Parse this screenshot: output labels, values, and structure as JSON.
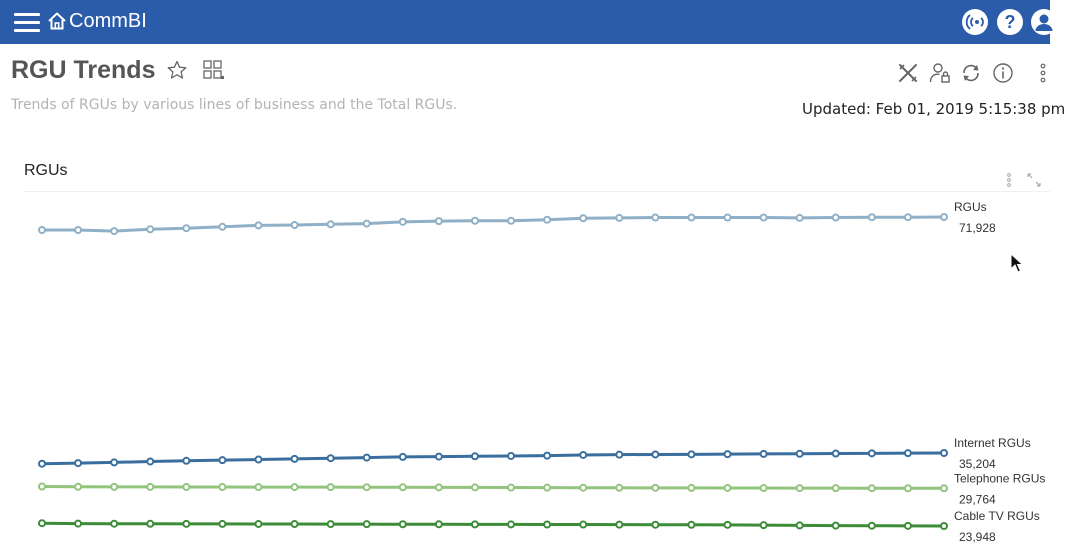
{
  "header": {
    "app_name": "CommBI",
    "icons": [
      "menu-icon",
      "home-icon",
      "broadcast-icon",
      "help-icon",
      "user-icon"
    ]
  },
  "page": {
    "title": "RGU Trends",
    "description": "Trends of RGUs by various lines of business and the Total RGUs.",
    "updated": "Updated: Feb 01, 2019 5:15:38 pm"
  },
  "toolbar_icons": [
    "tools-icon",
    "user-lock-icon",
    "refresh-icon",
    "info-icon",
    "more-icon"
  ],
  "panel": {
    "title": "RGUs",
    "icons": [
      "panel-more-icon",
      "expand-icon"
    ]
  },
  "colors": {
    "header_bg": "#2a5caa",
    "rgus": "#8fb0c6",
    "internet": "#3a6e9e",
    "telephone": "#93c47d",
    "cable": "#3c8c37"
  },
  "chart_data": {
    "type": "line",
    "x": [
      1,
      2,
      3,
      4,
      5,
      6,
      7,
      8,
      9,
      10,
      11,
      12,
      13,
      14,
      15,
      16,
      17,
      18,
      19,
      20,
      21,
      22,
      23,
      24,
      25,
      26
    ],
    "grid": false,
    "legend": "inline-right",
    "series": [
      {
        "name": "RGUs",
        "last_label": "71,928",
        "color": "#8fb0c6",
        "values": [
          70100,
          70100,
          69950,
          70200,
          70350,
          70550,
          70750,
          70800,
          70900,
          71000,
          71250,
          71350,
          71400,
          71400,
          71550,
          71750,
          71800,
          71850,
          71850,
          71850,
          71850,
          71800,
          71850,
          71900,
          71900,
          71928
        ]
      },
      {
        "name": "Internet RGUs",
        "last_label": "35,204",
        "color": "#3a6e9e",
        "values": [
          33550,
          33650,
          33750,
          33900,
          34000,
          34100,
          34200,
          34300,
          34400,
          34500,
          34600,
          34650,
          34700,
          34750,
          34800,
          34900,
          34950,
          34980,
          35000,
          35030,
          35060,
          35090,
          35120,
          35150,
          35180,
          35204
        ]
      },
      {
        "name": "Telephone RGUs",
        "last_label": "29,764",
        "color": "#93c47d",
        "values": [
          30030,
          30000,
          29980,
          29980,
          29970,
          29960,
          29950,
          29950,
          29940,
          29930,
          29920,
          29910,
          29900,
          29880,
          29860,
          29850,
          29840,
          29830,
          29820,
          29810,
          29800,
          29790,
          29780,
          29775,
          29770,
          29764
        ]
      },
      {
        "name": "Cable TV RGUs",
        "last_label": "23,948",
        "color": "#3c8c37",
        "values": [
          24380,
          24320,
          24300,
          24290,
          24280,
          24270,
          24260,
          24250,
          24240,
          24230,
          24220,
          24210,
          24200,
          24190,
          24180,
          24170,
          24160,
          24150,
          24140,
          24130,
          24080,
          24040,
          24010,
          23990,
          23970,
          23948
        ]
      }
    ]
  }
}
